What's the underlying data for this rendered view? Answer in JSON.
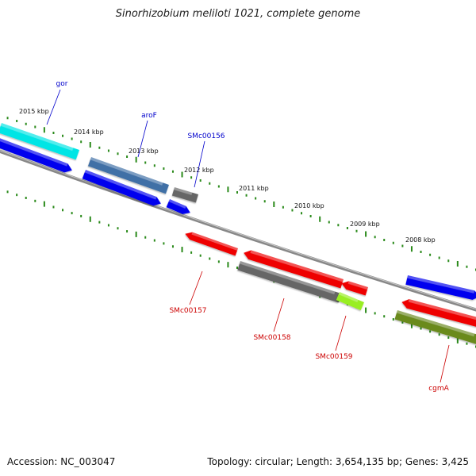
{
  "title": "Sinorhizobium meliloti 1021, complete genome",
  "accession": "Accession: NC_003047",
  "topology": "Topology: circular; Length: 3,654,135 bp; Genes: 3,425",
  "colors": {
    "backbone": "#888888",
    "tick": "#2a8a1a",
    "label_forward": "#0000cc",
    "label_reverse": "#cc0000"
  },
  "scale_labels": [
    "2015 kbp",
    "2014 kbp",
    "2013 kbp",
    "2012 kbp",
    "2011 kbp",
    "2010 kbp",
    "2009 kbp",
    "2008 kbp"
  ],
  "gene_labels": [
    {
      "text": "gor",
      "strand": "forward"
    },
    {
      "text": "aroF",
      "strand": "forward"
    },
    {
      "text": "SMc00156",
      "strand": "forward"
    },
    {
      "text": "SMc00157",
      "strand": "reverse"
    },
    {
      "text": "SMc00158",
      "strand": "reverse"
    },
    {
      "text": "SMc00159",
      "strand": "reverse"
    },
    {
      "text": "cgmA",
      "strand": "reverse"
    }
  ],
  "features": [
    {
      "name": "gor",
      "color": "#00e5e5"
    },
    {
      "name": "forward-cds-1",
      "color": "#0000ee"
    },
    {
      "name": "aroF",
      "color": "#3f6fa6"
    },
    {
      "name": "forward-cds-2",
      "color": "#0000ee"
    },
    {
      "name": "SMc00156",
      "color": "#666666"
    },
    {
      "name": "forward-cds-3",
      "color": "#0000ee"
    },
    {
      "name": "SMc00157",
      "color": "#ee0000"
    },
    {
      "name": "reverse-cds-1",
      "color": "#ee0000"
    },
    {
      "name": "SMc00158",
      "color": "#666666"
    },
    {
      "name": "reverse-cds-2",
      "color": "#ee0000"
    },
    {
      "name": "SMc00159",
      "color": "#99ee22"
    },
    {
      "name": "forward-cds-4",
      "color": "#0000ee"
    },
    {
      "name": "reverse-cds-3",
      "color": "#ee0000"
    },
    {
      "name": "cgmA",
      "color": "#6b8a1f"
    }
  ]
}
